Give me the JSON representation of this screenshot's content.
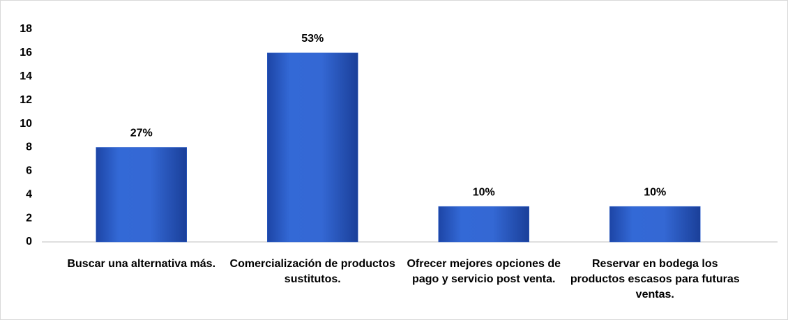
{
  "chart_data": {
    "type": "bar",
    "categories": [
      "Buscar una alternativa más.",
      "Comercialización de productos sustitutos.",
      "Ofrecer mejores opciones de pago y servicio post venta.",
      "Reservar en bodega los productos escasos para futuras ventas."
    ],
    "values": [
      8,
      16,
      3,
      3
    ],
    "annotations": [
      "27%",
      "53%",
      "10%",
      "10%"
    ],
    "color": "#2f62cc",
    "ylim": [
      0,
      18
    ],
    "yticks": [
      0,
      2,
      4,
      6,
      8,
      10,
      12,
      14,
      16,
      18
    ],
    "grid": false
  }
}
